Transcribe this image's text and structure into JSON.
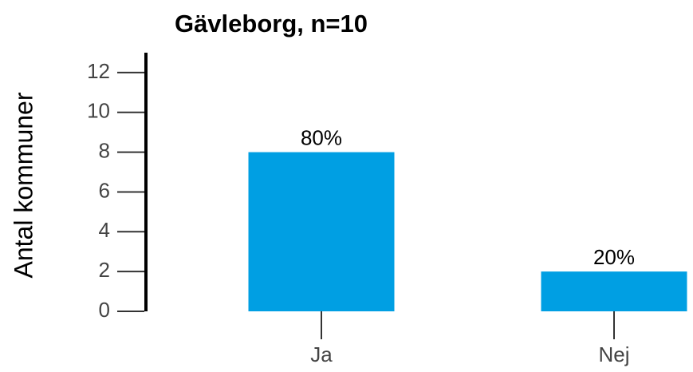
{
  "chart_data": {
    "type": "bar",
    "title": "Gävleborg, n=10",
    "y_label": "Antal kommuner",
    "categories": [
      "Ja",
      "Nej"
    ],
    "values": [
      8,
      2
    ],
    "value_labels": [
      "80%",
      "20%"
    ],
    "color": "#009fe3",
    "ylim": [
      0,
      13
    ],
    "yticks": [
      0,
      2,
      4,
      6,
      8,
      10,
      12
    ],
    "grid": false
  }
}
